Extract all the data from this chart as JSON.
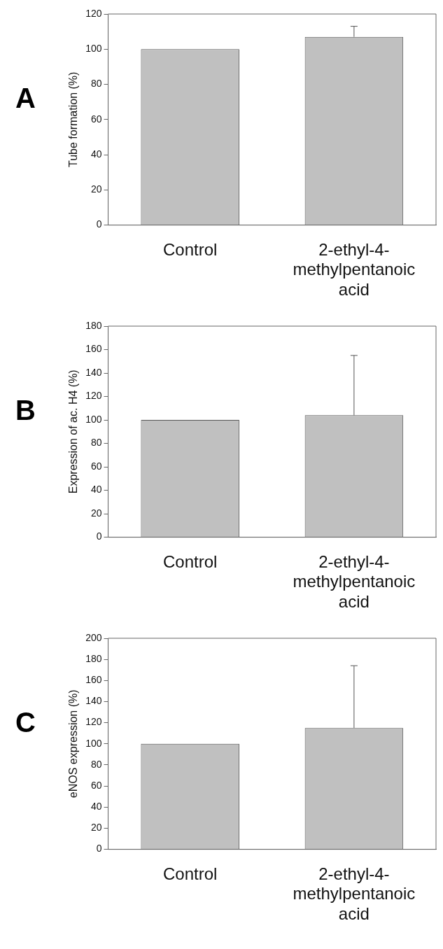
{
  "chart_data": [
    {
      "type": "bar",
      "title": "A",
      "ylabel": "Tube formation (%)",
      "categories": [
        "Control",
        "2-ethyl-4-methylpentanoic acid"
      ],
      "values": [
        100,
        107
      ],
      "errors": [
        null,
        [
          107,
          113
        ]
      ],
      "color": "#c0c0c0",
      "ylim": [
        0,
        120
      ],
      "yticks": [
        0,
        20,
        40,
        60,
        80,
        100,
        120
      ]
    },
    {
      "type": "bar",
      "title": "B",
      "ylabel": "Expression of ac. H4 (%)",
      "categories": [
        "Control",
        "2-ethyl-4-methylpentanoic acid"
      ],
      "values": [
        100,
        104
      ],
      "errors": [
        null,
        [
          104,
          155
        ]
      ],
      "color": "#c0c0c0",
      "ylim": [
        0,
        180
      ],
      "yticks": [
        0,
        20,
        40,
        60,
        80,
        100,
        120,
        140,
        160,
        180
      ]
    },
    {
      "type": "bar",
      "title": "C",
      "ylabel": "eNOS expression (%)",
      "categories": [
        "Control",
        "2-ethyl-4-methylpentanoic acid"
      ],
      "values": [
        100,
        115
      ],
      "errors": [
        null,
        [
          115,
          174
        ]
      ],
      "color": "#c0c0c0",
      "ylim": [
        0,
        200
      ],
      "yticks": [
        0,
        20,
        40,
        60,
        80,
        100,
        120,
        140,
        160,
        180,
        200
      ]
    }
  ]
}
